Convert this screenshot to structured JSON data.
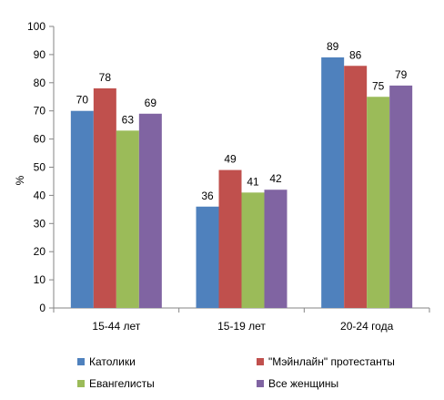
{
  "chart_data": {
    "type": "bar",
    "title": "",
    "xlabel": "",
    "ylabel": "%",
    "ylim": [
      0,
      100
    ],
    "yticks": [
      0,
      10,
      20,
      30,
      40,
      50,
      60,
      70,
      80,
      90,
      100
    ],
    "categories": [
      "15-44 лет",
      "15-19 лет",
      "20-24 года"
    ],
    "series": [
      {
        "name": "Католики",
        "values": [
          70,
          36,
          89
        ],
        "color": "#4f81bd"
      },
      {
        "name": "\"Мэйнлайн\" протестанты",
        "values": [
          78,
          49,
          86
        ],
        "color": "#c0504d"
      },
      {
        "name": "Евангелисты",
        "values": [
          63,
          41,
          75
        ],
        "color": "#9bbb59"
      },
      {
        "name": "Все женщины",
        "values": [
          69,
          42,
          79
        ],
        "color": "#8064a2"
      }
    ],
    "grid": false,
    "legend_position": "bottom"
  }
}
